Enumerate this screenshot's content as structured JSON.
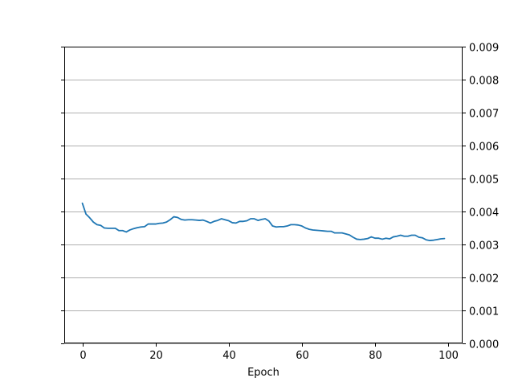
{
  "chart_data": {
    "type": "line",
    "title": "",
    "xlabel": "Epoch",
    "ylabel": "",
    "xlim": [
      -4.95,
      103.95
    ],
    "ylim": [
      0.0,
      0.009
    ],
    "y_axis_side": "right",
    "grid": {
      "y": true,
      "x": false
    },
    "xticks": [
      0,
      20,
      40,
      60,
      80,
      100
    ],
    "xtick_labels": [
      "0",
      "20",
      "40",
      "60",
      "80",
      "100"
    ],
    "yticks": [
      0.0,
      0.001,
      0.002,
      0.003,
      0.004,
      0.005,
      0.006,
      0.007,
      0.008,
      0.009
    ],
    "ytick_labels": [
      "0.000",
      "0.001",
      "0.002",
      "0.003",
      "0.004",
      "0.005",
      "0.006",
      "0.007",
      "0.008",
      "0.009"
    ],
    "colors": {
      "line": "#1f77b4",
      "grid": "#b0b0b0",
      "axes": "#000000"
    },
    "series": [
      {
        "x": [
          0,
          1,
          2,
          3,
          4,
          5,
          6,
          7,
          8,
          9,
          10,
          11,
          12,
          13,
          14,
          15,
          16,
          17,
          18,
          19,
          20,
          21,
          22,
          23,
          24,
          25,
          26,
          27,
          28,
          29,
          30,
          31,
          32,
          33,
          34,
          35,
          36,
          37,
          38,
          39,
          40,
          41,
          42,
          43,
          44,
          45,
          46,
          47,
          48,
          49,
          50,
          51,
          52,
          53,
          54,
          55,
          56,
          57,
          58,
          59,
          60,
          61,
          62,
          63,
          64,
          65,
          66,
          67,
          68,
          69,
          70,
          71,
          72,
          73,
          74,
          75,
          76,
          77,
          78,
          79,
          80,
          81,
          82,
          83,
          84,
          85,
          86,
          87,
          88,
          89,
          90,
          91,
          92,
          93,
          94,
          95,
          96,
          97,
          98,
          99
        ],
        "values": [
          0.00425,
          0.00392,
          0.00381,
          0.00368,
          0.0036,
          0.00358,
          0.0035,
          0.00349,
          0.00349,
          0.00349,
          0.00342,
          0.00342,
          0.00338,
          0.00344,
          0.00348,
          0.00351,
          0.00353,
          0.00354,
          0.00362,
          0.00362,
          0.00362,
          0.00364,
          0.00365,
          0.00368,
          0.00375,
          0.00384,
          0.00382,
          0.00376,
          0.00374,
          0.00375,
          0.00375,
          0.00374,
          0.00373,
          0.00374,
          0.0037,
          0.00365,
          0.0037,
          0.00373,
          0.00378,
          0.00375,
          0.00372,
          0.00366,
          0.00365,
          0.0037,
          0.0037,
          0.00372,
          0.00378,
          0.00378,
          0.00373,
          0.00376,
          0.00378,
          0.00371,
          0.00356,
          0.00353,
          0.00354,
          0.00354,
          0.00356,
          0.0036,
          0.0036,
          0.00359,
          0.00356,
          0.0035,
          0.00346,
          0.00344,
          0.00343,
          0.00342,
          0.00341,
          0.0034,
          0.0034,
          0.00335,
          0.00335,
          0.00335,
          0.00332,
          0.00329,
          0.00322,
          0.00316,
          0.00315,
          0.00316,
          0.00318,
          0.00323,
          0.00319,
          0.00319,
          0.00316,
          0.00319,
          0.00317,
          0.00323,
          0.00325,
          0.00328,
          0.00325,
          0.00325,
          0.00328,
          0.00328,
          0.00322,
          0.0032,
          0.00314,
          0.00312,
          0.00313,
          0.00315,
          0.00317,
          0.00318
        ]
      }
    ]
  }
}
